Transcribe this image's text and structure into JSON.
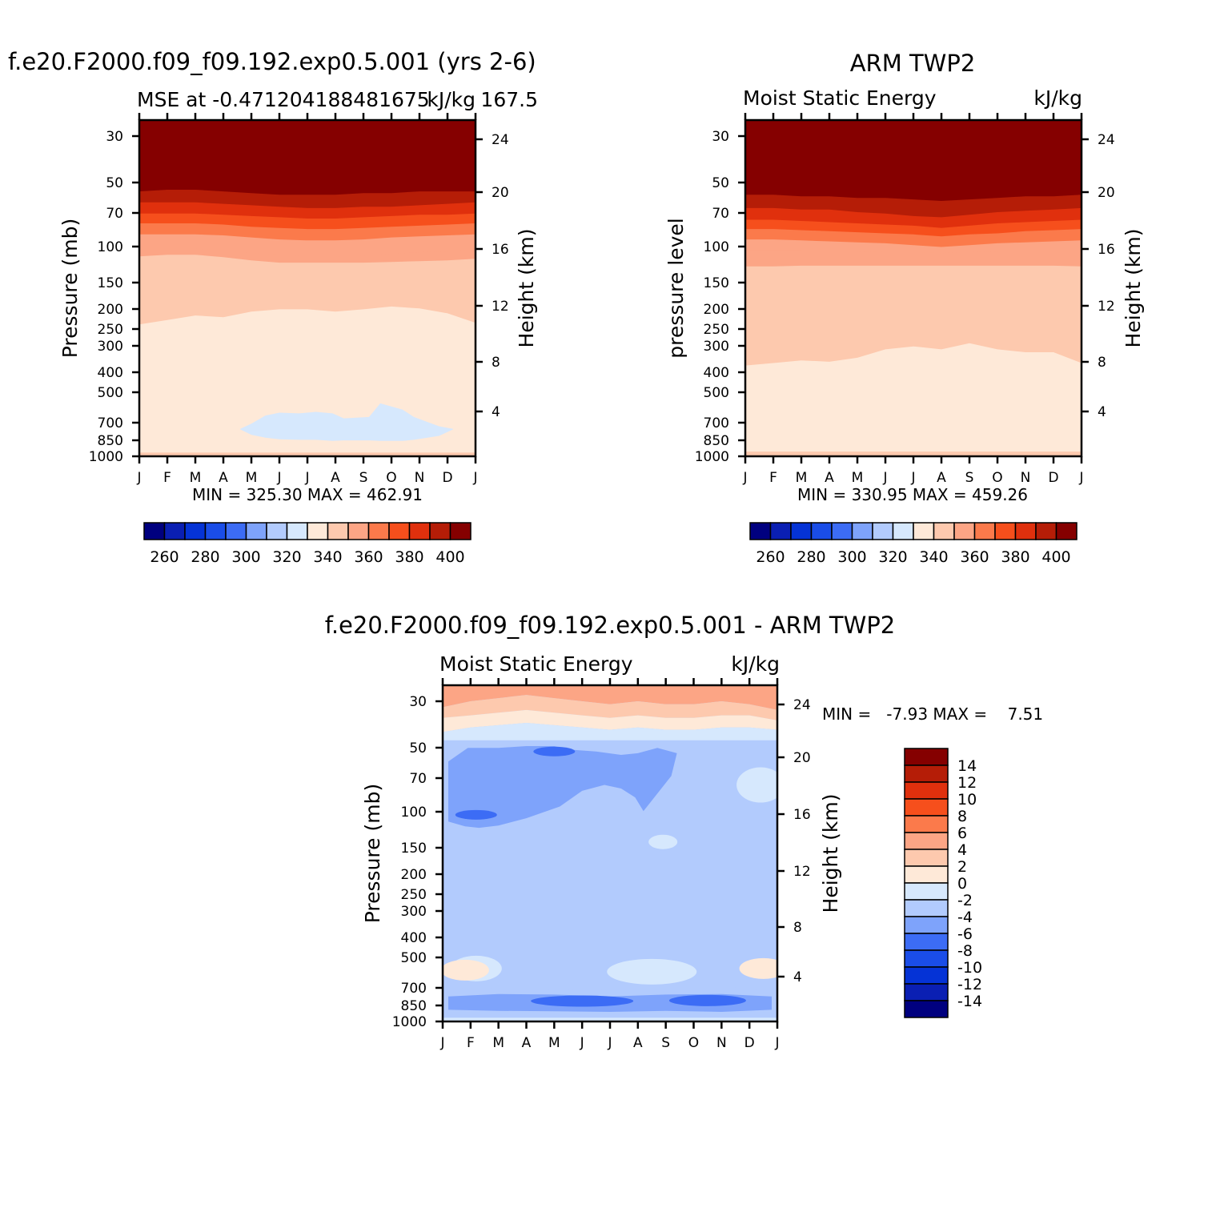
{
  "chart_data": [
    {
      "type": "heatmap",
      "title": "f.e20.F2000.f09_f09.192.exp0.5.001 (yrs 2-6)",
      "subtitle_left": "MSE at -0.471204188481675",
      "subtitle_right": "kJ/kg",
      "subtitle_extra": "167.5",
      "ylabel": "Pressure (mb)",
      "ylabel_right": "Height (km)",
      "x_ticks": [
        "J",
        "F",
        "M",
        "A",
        "M",
        "J",
        "J",
        "A",
        "S",
        "O",
        "N",
        "D",
        "J"
      ],
      "y_ticks": [
        "30",
        "50",
        "70",
        "100",
        "150",
        "200",
        "250",
        "300",
        "400",
        "500",
        "700",
        "850",
        "1000"
      ],
      "y_right_ticks": [
        "24",
        "20",
        "16",
        "12",
        "8",
        "4"
      ],
      "min_max": "MIN =  325.30 MAX =  462.91",
      "contour_levels": [
        250,
        260,
        270,
        280,
        290,
        300,
        310,
        320,
        330,
        340,
        350,
        360,
        370,
        380,
        390,
        400
      ],
      "colorbar_labels": [
        "260",
        "280",
        "300",
        "320",
        "340",
        "360",
        "380",
        "400"
      ],
      "layer_boundaries_mb": {
        "above_400_from_mb": [
          55,
          54,
          54,
          55,
          56,
          57,
          57,
          57,
          56,
          56,
          55,
          55,
          55
        ],
        "390_to_400_from_mb": [
          62,
          62,
          62,
          63,
          64,
          65,
          66,
          66,
          65,
          65,
          64,
          63,
          62
        ],
        "380_to_390_from_mb": [
          70,
          70,
          70,
          71,
          72,
          73,
          74,
          74,
          73,
          72,
          71,
          71,
          70
        ],
        "370_to_380_from_mb": [
          78,
          78,
          78,
          79,
          81,
          82,
          83,
          83,
          82,
          81,
          80,
          79,
          78
        ],
        "360_to_370_from_mb": [
          88,
          88,
          88,
          89,
          91,
          93,
          94,
          94,
          93,
          91,
          90,
          89,
          88
        ],
        "350_to_360_from_mb": [
          103,
          103,
          103,
          105,
          108,
          110,
          112,
          112,
          111,
          109,
          107,
          106,
          104
        ],
        "340_to_350_from_mb": [
          112,
          110,
          110,
          113,
          117,
          120,
          120,
          120,
          120,
          119,
          118,
          117,
          115
        ],
        "330_to_340_from_mb": [
          236,
          225,
          214,
          218,
          205,
          200,
          200,
          205,
          200,
          194,
          198,
          209,
          232
        ]
      },
      "low_region_320_to_330": {
        "months": [
          3.6,
          4.0,
          4.5,
          5.0,
          5.7,
          6.3,
          6.9,
          7.3,
          8.2,
          8.6,
          9.4,
          9.8,
          10.7,
          11.2
        ],
        "upper_mb": [
          740,
          700,
          640,
          620,
          625,
          615,
          625,
          660,
          650,
          560,
          600,
          650,
          720,
          740
        ],
        "lower_mb": [
          745,
          790,
          815,
          830,
          835,
          835,
          845,
          840,
          840,
          845,
          845,
          835,
          800,
          745
        ]
      },
      "surface_band_340_350_from_mb": 960
    },
    {
      "type": "heatmap",
      "title": "ARM TWP2",
      "subtitle_left": "Moist Static Energy",
      "subtitle_right": "kJ/kg",
      "ylabel": "pressure level",
      "ylabel_right": "Height (km)",
      "x_ticks": [
        "J",
        "F",
        "M",
        "A",
        "M",
        "J",
        "J",
        "A",
        "S",
        "O",
        "N",
        "D",
        "J"
      ],
      "y_ticks": [
        "30",
        "50",
        "70",
        "100",
        "150",
        "200",
        "250",
        "300",
        "400",
        "500",
        "700",
        "850",
        "1000"
      ],
      "y_right_ticks": [
        "24",
        "20",
        "16",
        "12",
        "8",
        "4"
      ],
      "min_max": "MIN =  330.95 MAX =  459.26",
      "contour_levels": [
        250,
        260,
        270,
        280,
        290,
        300,
        310,
        320,
        330,
        340,
        350,
        360,
        370,
        380,
        390,
        400
      ],
      "colorbar_labels": [
        "260",
        "280",
        "300",
        "320",
        "340",
        "360",
        "380",
        "400"
      ],
      "layer_boundaries_mb": {
        "above_400_from_mb": [
          57,
          57,
          58,
          58,
          59,
          59,
          60,
          61,
          60,
          59,
          58,
          58,
          57
        ],
        "390_to_400_from_mb": [
          66,
          66,
          67,
          67,
          69,
          70,
          72,
          73,
          71,
          69,
          68,
          67,
          66
        ],
        "380_to_390_from_mb": [
          75,
          75,
          76,
          77,
          78,
          79,
          80,
          82,
          80,
          78,
          77,
          76,
          75
        ],
        "370_to_380_from_mb": [
          83,
          83,
          84,
          85,
          86,
          87,
          88,
          90,
          88,
          87,
          85,
          84,
          83
        ],
        "360_to_370_from_mb": [
          93,
          93,
          94,
          95,
          96,
          97,
          99,
          101,
          99,
          97,
          96,
          95,
          94
        ],
        "350_to_360_from_mb": [
          105,
          105,
          105,
          106,
          106,
          107,
          107,
          108,
          107,
          106,
          106,
          106,
          105
        ],
        "340_to_350_from_mb": [
          125,
          125,
          124,
          124,
          124,
          124,
          124,
          124,
          124,
          124,
          124,
          124,
          125
        ],
        "330_to_340_from_mb": [
          370,
          360,
          350,
          355,
          340,
          310,
          300,
          310,
          290,
          310,
          320,
          320,
          360
        ]
      },
      "surface_band_340_350_from_mb": 950
    },
    {
      "type": "heatmap",
      "title": "f.e20.F2000.f09_f09.192.exp0.5.001 - ARM TWP2",
      "subtitle_left": "Moist Static Energy",
      "subtitle_right": "kJ/kg",
      "ylabel": "Pressure (mb)",
      "ylabel_right": "Height (km)",
      "x_ticks": [
        "J",
        "F",
        "M",
        "A",
        "M",
        "J",
        "J",
        "A",
        "S",
        "O",
        "N",
        "D",
        "J"
      ],
      "y_ticks": [
        "30",
        "50",
        "70",
        "100",
        "150",
        "200",
        "250",
        "300",
        "400",
        "500",
        "700",
        "850",
        "1000"
      ],
      "y_right_ticks": [
        "24",
        "20",
        "16",
        "12",
        "8",
        "4"
      ],
      "min_max": "MIN =   -7.93 MAX =    7.51",
      "contour_levels": [
        -16,
        -14,
        -12,
        -10,
        -8,
        -6,
        -4,
        -2,
        0,
        2,
        4,
        6,
        8,
        10,
        12,
        14,
        16
      ],
      "colorbar_labels": [
        "14",
        "12",
        "10",
        "8",
        "6",
        "4",
        "2",
        "0",
        "-2",
        "-4",
        "-6",
        "-8",
        "-10",
        "-12",
        "-14"
      ],
      "layer_boundaries_mb": {
        "2_to_4_below_mb": [
          32,
          30,
          29,
          28,
          29,
          30,
          31,
          30,
          31,
          31,
          30,
          31,
          33
        ],
        "0_to_2_below_mb": [
          36,
          35,
          34,
          33,
          34,
          35,
          36,
          35,
          36,
          36,
          35,
          35,
          37
        ],
        "minus2_to_0_below_mb": [
          42,
          40,
          39,
          38,
          39,
          40,
          41,
          40,
          41,
          41,
          40,
          40,
          41
        ]
      },
      "minus4_to_minus2_base_mb": 46,
      "minus6_to_minus4_upper_region": {
        "months": [
          0.2,
          0.9,
          2.0,
          3.0,
          4.0,
          4.6,
          5.5,
          6.4,
          7.0,
          7.7,
          8.4,
          8.2,
          7.2,
          6.9,
          6.4,
          5.8,
          5.0,
          4.2,
          3.0,
          2.0,
          1.3,
          0.8,
          0.2
        ],
        "mb": [
          58,
          50,
          50,
          49,
          49,
          51,
          52,
          54,
          53,
          50,
          53,
          68,
          100,
          86,
          78,
          75,
          80,
          95,
          108,
          117,
          120,
          118,
          112
        ]
      },
      "minus8_to_minus6_spots": [
        {
          "month": 1.2,
          "mb": 104,
          "label": "Feb near 100mb"
        },
        {
          "month": 4.0,
          "mb": 52,
          "label": "Apr near 50mb"
        }
      ],
      "minus4_to_minus2_patches": [
        {
          "month": 11.4,
          "mb": 75,
          "label": "Nov-Dec 60-90mb"
        },
        {
          "month": 7.9,
          "mb": 140,
          "label": "Aug near 140mb"
        },
        {
          "month": 1.2,
          "mb": 560,
          "label": "Feb 500-650mb"
        },
        {
          "month": 7.5,
          "mb": 580,
          "label": "Jun-Sep 500-650mb"
        }
      ],
      "minus6_to_minus4_lower_region": {
        "months": [
          0.2,
          1.5,
          3.0,
          4.5,
          6.0,
          7.5,
          9.0,
          10.5,
          11.8,
          11.8,
          10.5,
          9.0,
          7.5,
          6.0,
          4.5,
          3.0,
          1.5,
          0.2
        ],
        "mb": [
          700,
          690,
          720,
          700,
          705,
          690,
          700,
          690,
          720,
          820,
          860,
          840,
          855,
          840,
          850,
          850,
          840,
          860
        ]
      },
      "minus8_to_minus6_lower_bands": [
        {
          "month": 5.0,
          "mb": 800,
          "label": "Apr-Jun near 800mb"
        },
        {
          "month": 9.5,
          "mb": 795,
          "label": "Sep-Nov near 800mb"
        }
      ],
      "positive_0_to_2_lower_patches": [
        {
          "month": 0.8,
          "mb": 570,
          "label": "Jan-Feb near 570mb"
        },
        {
          "month": 11.5,
          "mb": 560,
          "label": "Dec-Jan near 560mb"
        }
      ]
    }
  ],
  "colors": {
    "bwr_palette": [
      "#00007f",
      "#0a1fb3",
      "#0533d6",
      "#1a4de8",
      "#3c6cf5",
      "#7ea3fb",
      "#b2cbfd",
      "#d6e8fd",
      "#fee9d8",
      "#fdc9ae",
      "#fca585",
      "#fb7a4b",
      "#f64f1c",
      "#e0300d",
      "#b51d07",
      "#850000"
    ]
  }
}
